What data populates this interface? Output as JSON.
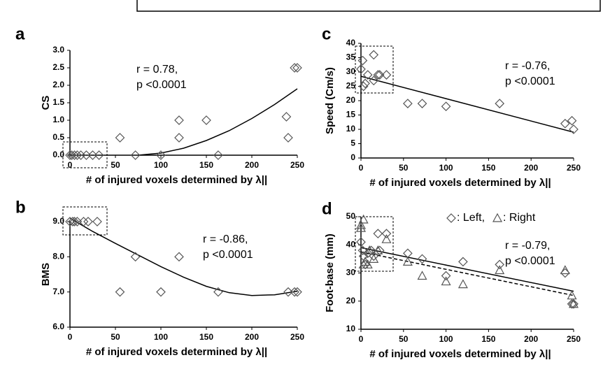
{
  "chart_data": [
    {
      "type": "scatter",
      "panel": "a",
      "ylabel": "CS",
      "xlabel": "# of injured voxels determined by λ||",
      "xlim": [
        0,
        250
      ],
      "xticks": [
        0,
        50,
        100,
        150,
        200,
        250
      ],
      "ylim": [
        0,
        3
      ],
      "yticks": [
        {
          "value": 0,
          "label": "0.0"
        },
        0.5,
        {
          "value": 1,
          "label": "1.0"
        },
        1.5,
        {
          "value": 2,
          "label": "2.0"
        },
        2.5,
        {
          "value": 3,
          "label": "3.0"
        }
      ],
      "annotation": [
        "r = 0.78,",
        "p <0.0001"
      ],
      "series": [
        {
          "marker": "diamond",
          "color": "#555555",
          "x": [
            0,
            2,
            5,
            8,
            12,
            18,
            25,
            32,
            55,
            72,
            100,
            120,
            120,
            150,
            163,
            238,
            240,
            247,
            250
          ],
          "y": [
            0,
            0,
            0,
            0,
            0,
            0,
            0,
            0,
            0.5,
            0,
            0,
            1.0,
            0.5,
            1.0,
            0,
            1.1,
            0.5,
            2.5,
            2.5
          ]
        }
      ],
      "fits": [
        {
          "dashed": false,
          "x": [
            75,
            100,
            125,
            150,
            175,
            200,
            225,
            250
          ],
          "y": [
            0,
            0.06,
            0.2,
            0.42,
            0.7,
            1.05,
            1.45,
            1.9
          ]
        }
      ]
    },
    {
      "type": "scatter",
      "panel": "b",
      "ylabel": "BMS",
      "xlabel": "# of injured voxels determined by λ||",
      "xlim": [
        0,
        250
      ],
      "xticks": [
        0,
        50,
        100,
        150,
        200,
        250
      ],
      "ylim": [
        6,
        9
      ],
      "yticks": [
        {
          "value": 6,
          "label": "6.0"
        },
        {
          "value": 7,
          "label": "7.0"
        },
        {
          "value": 8,
          "label": "8.0"
        },
        {
          "value": 9,
          "label": "9.0"
        }
      ],
      "annotation": [
        "r = -0.86,",
        "p <0.0001"
      ],
      "series": [
        {
          "marker": "diamond",
          "color": "#555555",
          "x": [
            0,
            3,
            5,
            8,
            15,
            20,
            30,
            55,
            72,
            100,
            120,
            163,
            240,
            247,
            250
          ],
          "y": [
            9,
            9,
            9,
            9,
            9,
            9,
            9,
            7,
            8,
            7,
            8,
            7,
            7,
            7,
            7
          ]
        }
      ],
      "fits": [
        {
          "dashed": false,
          "x": [
            0,
            25,
            50,
            75,
            100,
            125,
            150,
            175,
            200,
            225,
            250
          ],
          "y": [
            9.1,
            8.72,
            8.38,
            8.05,
            7.72,
            7.42,
            7.16,
            6.98,
            6.9,
            6.92,
            7.02
          ]
        }
      ]
    },
    {
      "type": "scatter",
      "panel": "c",
      "ylabel": "Speed (Cm/s)",
      "xlabel": "# of injured voxels determined by λ||",
      "xlim": [
        0,
        250
      ],
      "xticks": [
        0,
        50,
        100,
        150,
        200,
        250
      ],
      "ylim": [
        0,
        40
      ],
      "yticks": [
        0,
        5,
        10,
        15,
        20,
        25,
        30,
        35,
        40
      ],
      "annotation": [
        "r = -0.76,",
        "p <0.0001"
      ],
      "series": [
        {
          "marker": "diamond",
          "color": "#555555",
          "x": [
            0,
            2,
            3,
            5,
            8,
            15,
            15,
            20,
            22,
            30,
            55,
            72,
            100,
            163,
            240,
            248,
            250
          ],
          "y": [
            31,
            34,
            25,
            26,
            29,
            36,
            27,
            29,
            29,
            29,
            19,
            19,
            18,
            19,
            12,
            13,
            10
          ]
        }
      ],
      "fits": [
        {
          "dashed": false,
          "x": [
            0,
            250
          ],
          "y": [
            28.5,
            9
          ]
        }
      ]
    },
    {
      "type": "scatter",
      "panel": "d",
      "ylabel": "Foot-base  (mm)",
      "xlabel": "# of injured voxels determined by λ||",
      "xlim": [
        0,
        250
      ],
      "xticks": [
        0,
        50,
        100,
        150,
        200,
        250
      ],
      "ylim": [
        10,
        50
      ],
      "yticks": [
        10,
        20,
        30,
        40,
        50
      ],
      "annotation": [
        "r = -0.79,",
        "p <0.0001"
      ],
      "series": [
        {
          "name": ": Left,",
          "marker": "diamond",
          "color": "#555555",
          "x": [
            0,
            2,
            3,
            5,
            8,
            12,
            15,
            20,
            22,
            30,
            55,
            72,
            100,
            120,
            163,
            240,
            248,
            250
          ],
          "y": [
            41,
            38,
            36,
            33,
            37,
            38,
            36,
            44,
            38,
            44,
            37,
            35,
            29,
            34,
            33,
            30,
            19,
            19
          ]
        },
        {
          "name": ": Right",
          "marker": "triangle",
          "color": "#555555",
          "x": [
            0,
            0,
            3,
            3,
            5,
            8,
            10,
            15,
            20,
            30,
            55,
            72,
            100,
            120,
            163,
            240,
            248,
            250
          ],
          "y": [
            46,
            47,
            49,
            33,
            34,
            33,
            38,
            35,
            38,
            42,
            34,
            29,
            27,
            26,
            31,
            31,
            22,
            19
          ]
        }
      ],
      "fits": [
        {
          "dashed": false,
          "x": [
            0,
            250
          ],
          "y": [
            39,
            23.5
          ]
        },
        {
          "dashed": true,
          "x": [
            0,
            250
          ],
          "y": [
            37.5,
            22
          ]
        }
      ]
    }
  ]
}
